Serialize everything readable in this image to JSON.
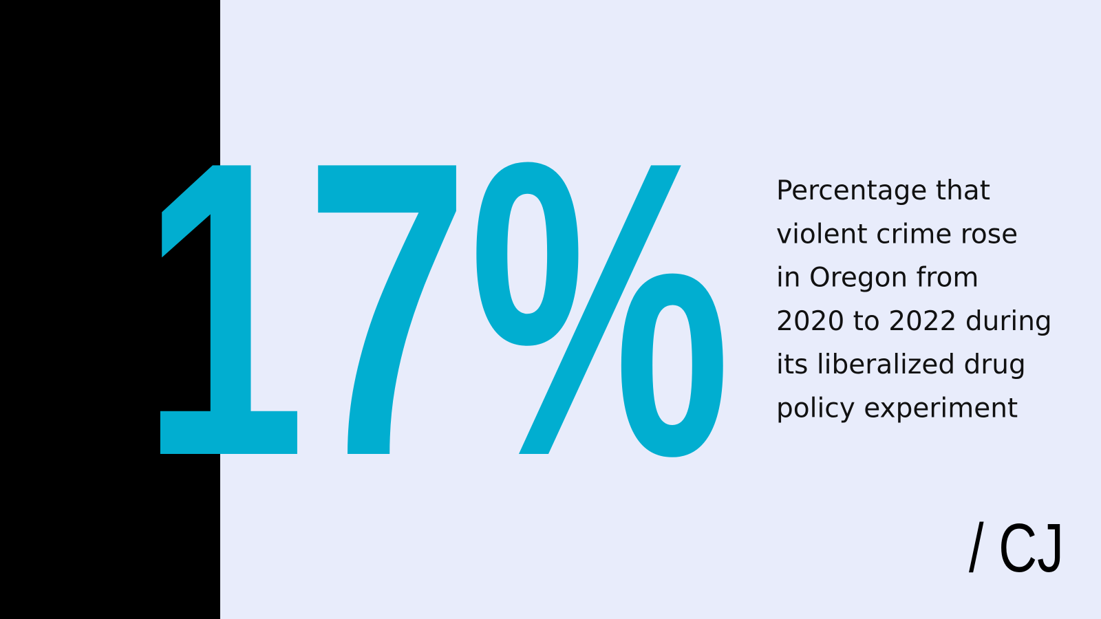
{
  "stat": {
    "value": "17%"
  },
  "description": {
    "lines": [
      "Percentage that",
      "violent crime rose",
      "in Oregon from",
      "2020 to 2022 during",
      "its liberalized drug",
      "policy experiment"
    ]
  },
  "logo": {
    "text": "/ CJ"
  }
}
